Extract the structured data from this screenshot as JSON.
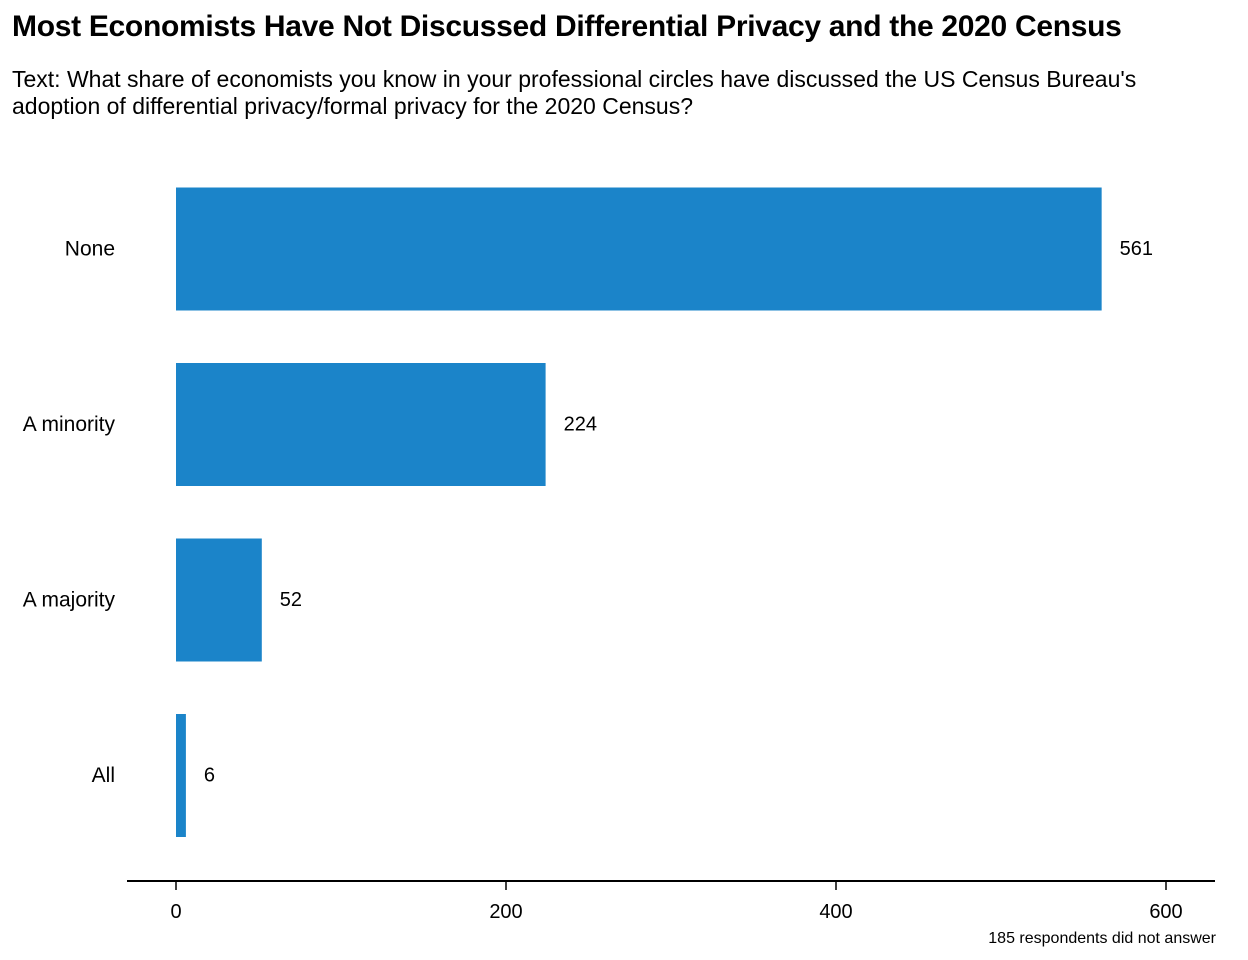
{
  "chart_data": {
    "type": "bar",
    "orientation": "horizontal",
    "title": "Most Economists Have Not Discussed Differential Privacy and the 2020 Census",
    "subtitle": "Text: What share of economists you know in your professional circles have discussed the US Census Bureau's adoption of differential privacy/formal privacy for the 2020 Census?",
    "caption": "185 respondents did not answer",
    "categories": [
      "None",
      "A minority",
      "A majority",
      "All"
    ],
    "values": [
      561,
      224,
      52,
      6
    ],
    "xlabel": "",
    "ylabel": "",
    "xlim": [
      0,
      600
    ],
    "x_ticks": [
      0,
      200,
      400,
      600
    ],
    "bar_color": "#1b84c9",
    "grid": false,
    "legend": "none"
  }
}
